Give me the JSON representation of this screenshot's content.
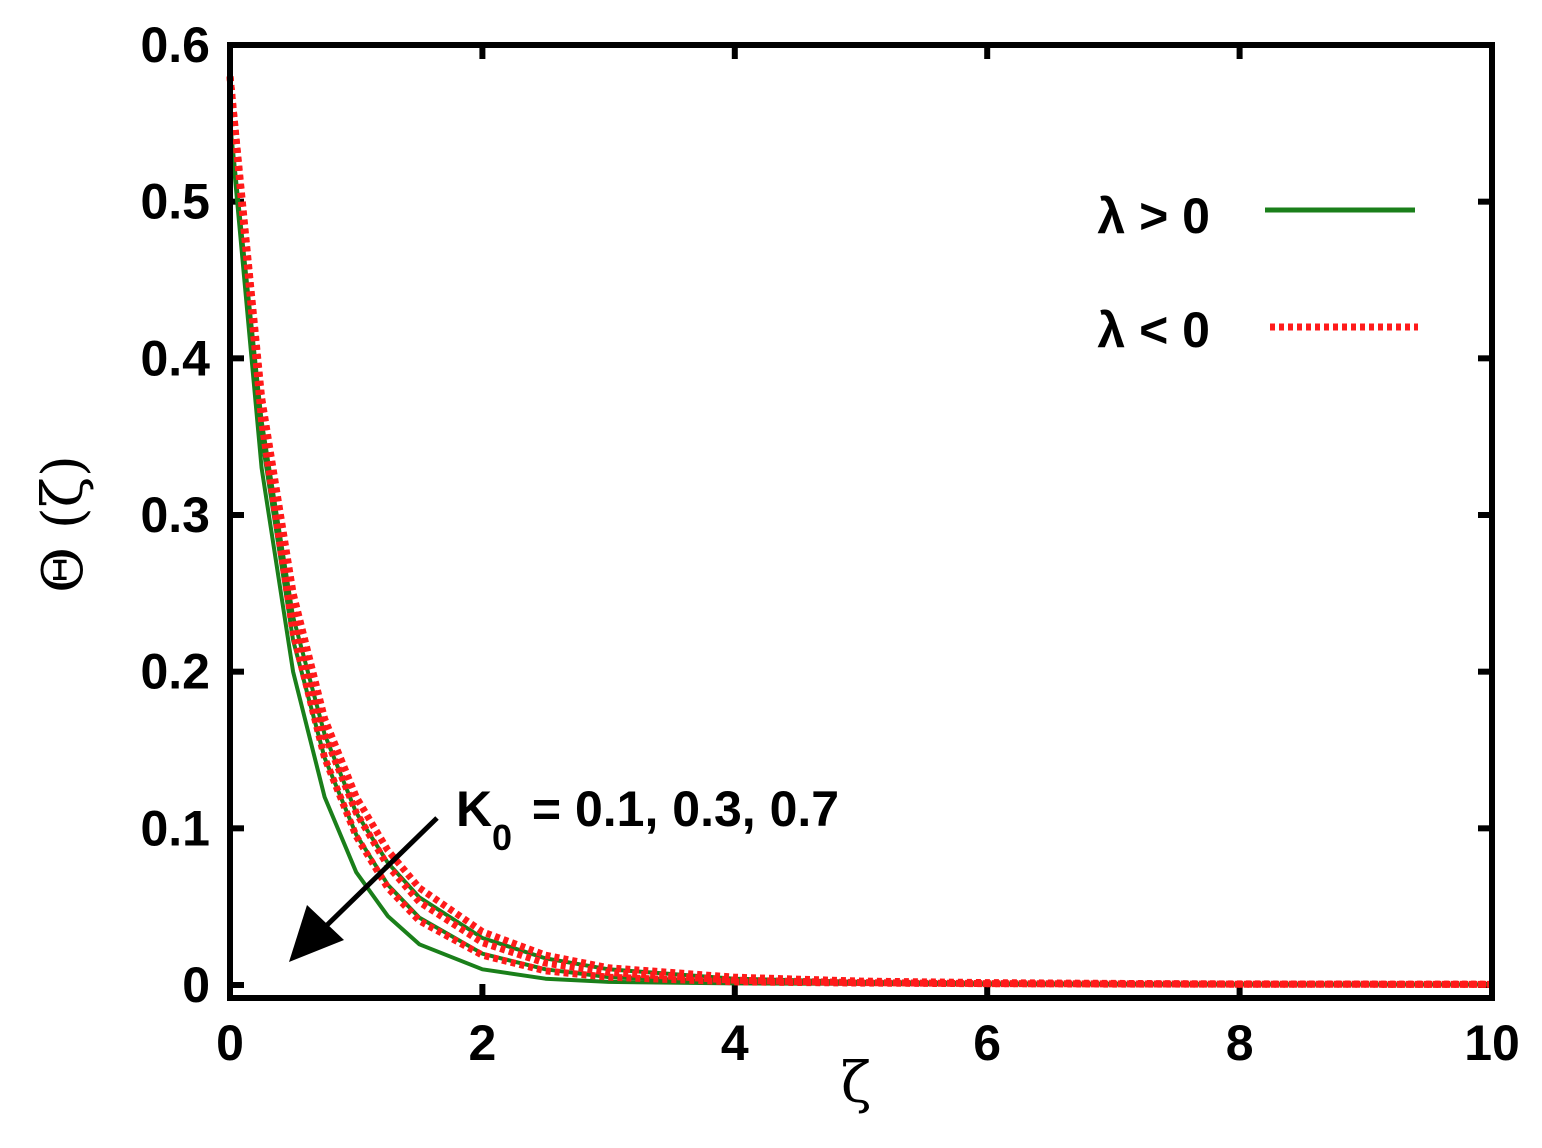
{
  "chart_data": {
    "type": "line",
    "xlabel": "ζ",
    "ylabel": "Θ (ζ)",
    "xlim": [
      0,
      10
    ],
    "ylim": [
      0,
      0.6
    ],
    "xticks": [
      "0",
      "2",
      "4",
      "6",
      "8",
      "10"
    ],
    "yticks": [
      "0",
      "0.1",
      "0.2",
      "0.3",
      "0.4",
      "0.5",
      "0.6"
    ],
    "grid": false,
    "legend_position": "top-right",
    "legend": [
      {
        "label": "λ > 0",
        "color": "#1a7f1a",
        "style": "solid"
      },
      {
        "label": "λ < 0",
        "color": "#ff1a1a",
        "style": "dotted"
      }
    ],
    "annotation": {
      "main": "K",
      "sub": "0",
      "rest": " = 0.1, 0.3, 0.7",
      "arrow": "pointing toward lower-left"
    },
    "x": [
      0,
      0.25,
      0.5,
      0.75,
      1,
      1.25,
      1.5,
      2,
      2.5,
      3,
      4,
      5,
      6,
      7,
      8,
      10
    ],
    "series": [
      {
        "group": "λ > 0",
        "color": "#1a7f1a",
        "style": "solid",
        "values": [
          0.55,
          0.33,
          0.2,
          0.12,
          0.072,
          0.044,
          0.026,
          0.01,
          0.004,
          0.002,
          0.001,
          0.0007,
          0.0005,
          0.0004,
          0.0003,
          0.0003
        ]
      },
      {
        "group": "λ > 0",
        "color": "#1a7f1a",
        "style": "solid",
        "values": [
          0.55,
          0.35,
          0.22,
          0.145,
          0.096,
          0.064,
          0.043,
          0.02,
          0.01,
          0.005,
          0.002,
          0.001,
          0.0007,
          0.0005,
          0.0004,
          0.0003
        ]
      },
      {
        "group": "λ > 0",
        "color": "#1a7f1a",
        "style": "solid",
        "values": [
          0.55,
          0.36,
          0.235,
          0.16,
          0.11,
          0.078,
          0.056,
          0.03,
          0.017,
          0.01,
          0.004,
          0.002,
          0.001,
          0.0007,
          0.0005,
          0.0004
        ]
      },
      {
        "group": "λ < 0",
        "color": "#ff1a1a",
        "style": "dotted",
        "values": [
          0.58,
          0.36,
          0.225,
          0.145,
          0.095,
          0.062,
          0.041,
          0.019,
          0.009,
          0.005,
          0.002,
          0.0012,
          0.0008,
          0.0006,
          0.0005,
          0.0004
        ]
      },
      {
        "group": "λ < 0",
        "color": "#ff1a1a",
        "style": "dotted",
        "values": [
          0.58,
          0.37,
          0.24,
          0.16,
          0.11,
          0.076,
          0.053,
          0.027,
          0.014,
          0.008,
          0.003,
          0.0015,
          0.0009,
          0.0007,
          0.0005,
          0.0004
        ]
      },
      {
        "group": "λ < 0",
        "color": "#ff1a1a",
        "style": "dotted",
        "values": [
          0.58,
          0.375,
          0.25,
          0.17,
          0.12,
          0.086,
          0.062,
          0.034,
          0.019,
          0.011,
          0.005,
          0.0025,
          0.0015,
          0.001,
          0.0007,
          0.0005
        ]
      }
    ]
  }
}
